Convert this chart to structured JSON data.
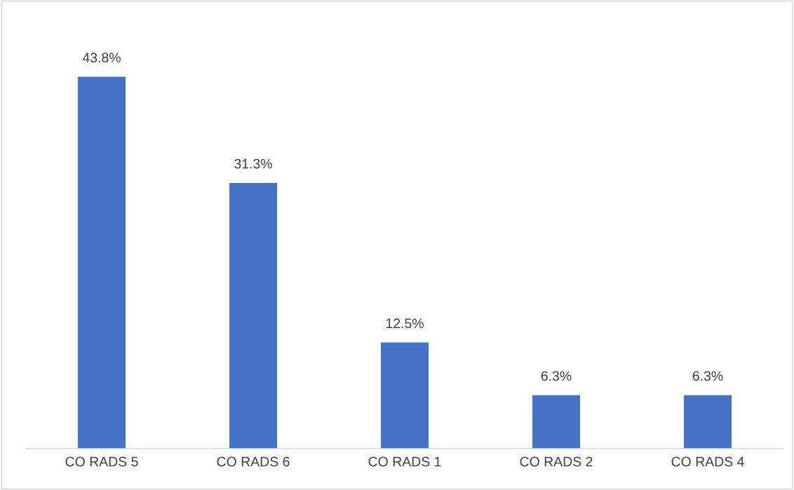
{
  "chart_data": {
    "type": "bar",
    "categories": [
      "CO RADS 5",
      "CO RADS 6",
      "CO RADS 1",
      "CO RADS 2",
      "CO RADS 4"
    ],
    "values": [
      43.8,
      31.3,
      12.5,
      6.3,
      6.3
    ],
    "value_labels": [
      "43.8%",
      "31.3%",
      "12.5%",
      "6.3%",
      "6.3%"
    ],
    "color": "#4472c4",
    "tick_labels": "x",
    "grid": false,
    "legend": false
  }
}
